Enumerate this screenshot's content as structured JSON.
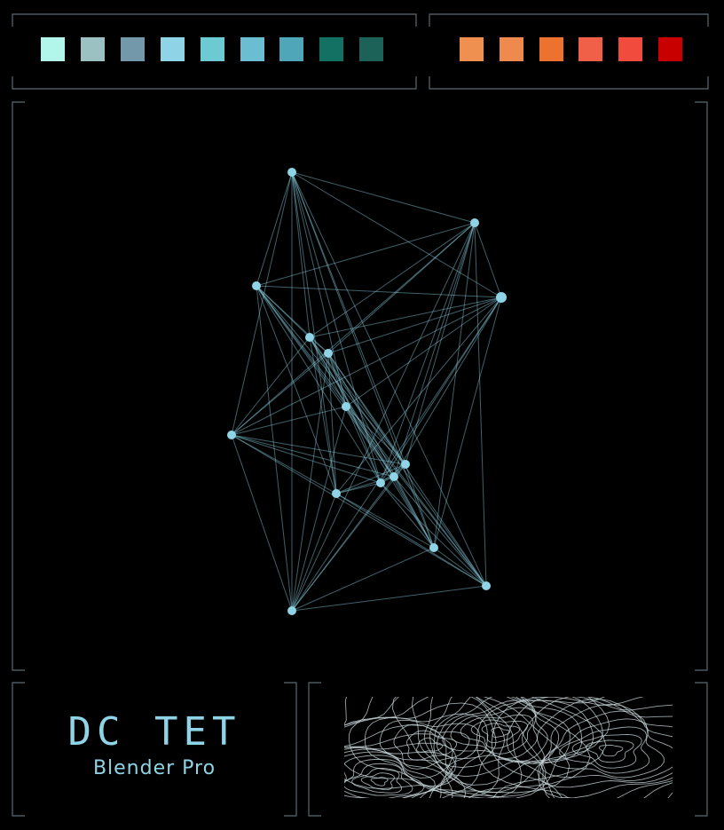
{
  "palettes": {
    "cool": [
      "#b2f5ea",
      "#9cc1c3",
      "#7398a9",
      "#8fd4e6",
      "#6ccad3",
      "#6bbdd2",
      "#4ea6b8",
      "#137164",
      "#1c6258"
    ],
    "warm": [
      "#ef9050",
      "#ee8a4e",
      "#ee722f",
      "#f06049",
      "#f04b3d",
      "#c80000"
    ]
  },
  "title": {
    "name": "DC TET",
    "font": "Blender Pro"
  },
  "graph": {
    "node_color": "#8fd4e6",
    "edge_color": "#8fd4e6"
  },
  "frame_color": "#5a6a72"
}
